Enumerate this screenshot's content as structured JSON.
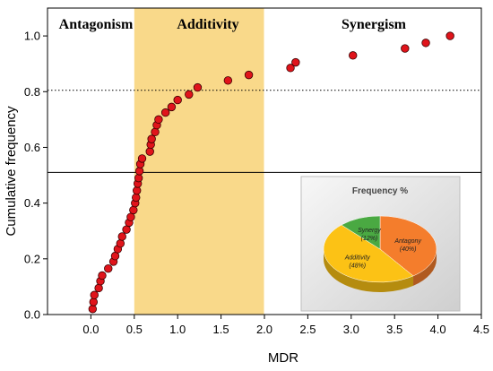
{
  "chart_data": [
    {
      "type": "scatter",
      "xlabel": "MDR",
      "ylabel": "Cumulative frequency",
      "xlim": [
        -0.5,
        4.5
      ],
      "ylim": [
        0.0,
        1.1
      ],
      "xticks": [
        "0.0",
        "0.5",
        "1.0",
        "1.5",
        "2.0",
        "2.5",
        "3.0",
        "3.5",
        "4.0",
        "4.5"
      ],
      "yticks": [
        "0.0",
        "0.2",
        "0.4",
        "0.6",
        "0.8",
        "1.0"
      ],
      "marker_color": "#e0141b",
      "region_color": "#f9d98a",
      "regions": [
        {
          "label": "Antagonism",
          "range": [
            -0.5,
            0.5
          ]
        },
        {
          "label": "Additivity",
          "range": [
            0.5,
            2.0
          ]
        },
        {
          "label": "Synergism",
          "range": [
            2.0,
            4.5
          ]
        }
      ],
      "reference_lines": [
        {
          "y": 0.51,
          "style": "solid"
        },
        {
          "y": 0.805,
          "style": "dotted"
        }
      ],
      "points": [
        {
          "x": 0.02,
          "y": 0.02
        },
        {
          "x": 0.03,
          "y": 0.045
        },
        {
          "x": 0.04,
          "y": 0.07
        },
        {
          "x": 0.09,
          "y": 0.095
        },
        {
          "x": 0.11,
          "y": 0.12
        },
        {
          "x": 0.13,
          "y": 0.14
        },
        {
          "x": 0.2,
          "y": 0.165
        },
        {
          "x": 0.26,
          "y": 0.19
        },
        {
          "x": 0.28,
          "y": 0.21
        },
        {
          "x": 0.31,
          "y": 0.235
        },
        {
          "x": 0.34,
          "y": 0.255
        },
        {
          "x": 0.36,
          "y": 0.28
        },
        {
          "x": 0.41,
          "y": 0.305
        },
        {
          "x": 0.44,
          "y": 0.33
        },
        {
          "x": 0.46,
          "y": 0.35
        },
        {
          "x": 0.49,
          "y": 0.375
        },
        {
          "x": 0.51,
          "y": 0.4
        },
        {
          "x": 0.52,
          "y": 0.42
        },
        {
          "x": 0.53,
          "y": 0.445
        },
        {
          "x": 0.54,
          "y": 0.47
        },
        {
          "x": 0.55,
          "y": 0.49
        },
        {
          "x": 0.56,
          "y": 0.515
        },
        {
          "x": 0.57,
          "y": 0.54
        },
        {
          "x": 0.59,
          "y": 0.56
        },
        {
          "x": 0.68,
          "y": 0.585
        },
        {
          "x": 0.69,
          "y": 0.61
        },
        {
          "x": 0.7,
          "y": 0.63
        },
        {
          "x": 0.74,
          "y": 0.655
        },
        {
          "x": 0.76,
          "y": 0.68
        },
        {
          "x": 0.78,
          "y": 0.7
        },
        {
          "x": 0.86,
          "y": 0.725
        },
        {
          "x": 0.93,
          "y": 0.745
        },
        {
          "x": 1.0,
          "y": 0.77
        },
        {
          "x": 1.13,
          "y": 0.79
        },
        {
          "x": 1.23,
          "y": 0.815
        },
        {
          "x": 1.58,
          "y": 0.84
        },
        {
          "x": 1.82,
          "y": 0.86
        },
        {
          "x": 2.3,
          "y": 0.885
        },
        {
          "x": 2.36,
          "y": 0.905
        },
        {
          "x": 3.02,
          "y": 0.93
        },
        {
          "x": 3.62,
          "y": 0.955
        },
        {
          "x": 3.86,
          "y": 0.975
        },
        {
          "x": 4.14,
          "y": 1.0
        }
      ]
    },
    {
      "type": "pie",
      "title": "Frequency %",
      "slices": [
        {
          "label": "Antagony",
          "value": 40,
          "value_label": "(40%)",
          "color": "#f47d2c"
        },
        {
          "label": "Additivity",
          "value": 48,
          "value_label": "(48%)",
          "color": "#fcc215"
        },
        {
          "label": "Synergy",
          "value": 12,
          "value_label": "(12%)",
          "color": "#4aa942"
        }
      ]
    }
  ]
}
